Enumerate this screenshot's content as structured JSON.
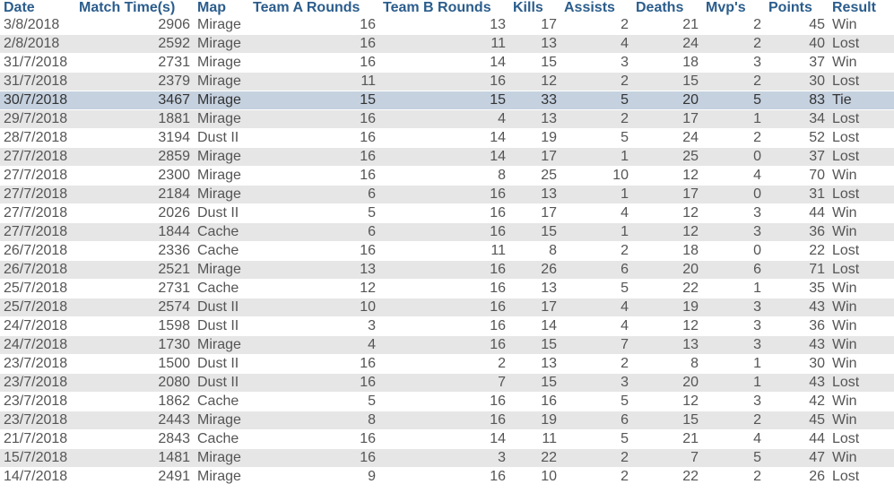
{
  "columns": {
    "date": "Date",
    "match_time": "Match Time(s)",
    "map": "Map",
    "team_a_rounds": "Team A Rounds",
    "team_b_rounds": "Team B Rounds",
    "kills": "Kills",
    "assists": "Assists",
    "deaths": "Deaths",
    "mvps": "Mvp's",
    "points": "Points",
    "result": "Result"
  },
  "selected_row": 4,
  "colors": {
    "header_text": "#2b5d8c",
    "stripe": "#e6e6e6",
    "selected_row": "#c5d1df"
  },
  "rows": [
    {
      "date": "3/8/2018",
      "match_time": "2906",
      "map": "Mirage",
      "team_a_rounds": "16",
      "team_b_rounds": "13",
      "kills": "17",
      "assists": "2",
      "deaths": "21",
      "mvps": "2",
      "points": "45",
      "result": "Win"
    },
    {
      "date": "2/8/2018",
      "match_time": "2592",
      "map": "Mirage",
      "team_a_rounds": "16",
      "team_b_rounds": "11",
      "kills": "13",
      "assists": "4",
      "deaths": "24",
      "mvps": "2",
      "points": "40",
      "result": "Lost"
    },
    {
      "date": "31/7/2018",
      "match_time": "2731",
      "map": "Mirage",
      "team_a_rounds": "16",
      "team_b_rounds": "14",
      "kills": "15",
      "assists": "3",
      "deaths": "18",
      "mvps": "3",
      "points": "37",
      "result": "Win"
    },
    {
      "date": "31/7/2018",
      "match_time": "2379",
      "map": "Mirage",
      "team_a_rounds": "11",
      "team_b_rounds": "16",
      "kills": "12",
      "assists": "2",
      "deaths": "15",
      "mvps": "2",
      "points": "30",
      "result": "Lost"
    },
    {
      "date": "30/7/2018",
      "match_time": "3467",
      "map": "Mirage",
      "team_a_rounds": "15",
      "team_b_rounds": "15",
      "kills": "33",
      "assists": "5",
      "deaths": "20",
      "mvps": "5",
      "points": "83",
      "result": "Tie"
    },
    {
      "date": "29/7/2018",
      "match_time": "1881",
      "map": "Mirage",
      "team_a_rounds": "16",
      "team_b_rounds": "4",
      "kills": "13",
      "assists": "2",
      "deaths": "17",
      "mvps": "1",
      "points": "34",
      "result": "Lost"
    },
    {
      "date": "28/7/2018",
      "match_time": "3194",
      "map": "Dust II",
      "team_a_rounds": "16",
      "team_b_rounds": "14",
      "kills": "19",
      "assists": "5",
      "deaths": "24",
      "mvps": "2",
      "points": "52",
      "result": "Lost"
    },
    {
      "date": "27/7/2018",
      "match_time": "2859",
      "map": "Mirage",
      "team_a_rounds": "16",
      "team_b_rounds": "14",
      "kills": "17",
      "assists": "1",
      "deaths": "25",
      "mvps": "0",
      "points": "37",
      "result": "Lost"
    },
    {
      "date": "27/7/2018",
      "match_time": "2300",
      "map": "Mirage",
      "team_a_rounds": "16",
      "team_b_rounds": "8",
      "kills": "25",
      "assists": "10",
      "deaths": "12",
      "mvps": "4",
      "points": "70",
      "result": "Win"
    },
    {
      "date": "27/7/2018",
      "match_time": "2184",
      "map": "Mirage",
      "team_a_rounds": "6",
      "team_b_rounds": "16",
      "kills": "13",
      "assists": "1",
      "deaths": "17",
      "mvps": "0",
      "points": "31",
      "result": "Lost"
    },
    {
      "date": "27/7/2018",
      "match_time": "2026",
      "map": "Dust II",
      "team_a_rounds": "5",
      "team_b_rounds": "16",
      "kills": "17",
      "assists": "4",
      "deaths": "12",
      "mvps": "3",
      "points": "44",
      "result": "Win"
    },
    {
      "date": "27/7/2018",
      "match_time": "1844",
      "map": "Cache",
      "team_a_rounds": "6",
      "team_b_rounds": "16",
      "kills": "15",
      "assists": "1",
      "deaths": "12",
      "mvps": "3",
      "points": "36",
      "result": "Win"
    },
    {
      "date": "26/7/2018",
      "match_time": "2336",
      "map": "Cache",
      "team_a_rounds": "16",
      "team_b_rounds": "11",
      "kills": "8",
      "assists": "2",
      "deaths": "18",
      "mvps": "0",
      "points": "22",
      "result": "Lost"
    },
    {
      "date": "26/7/2018",
      "match_time": "2521",
      "map": "Mirage",
      "team_a_rounds": "13",
      "team_b_rounds": "16",
      "kills": "26",
      "assists": "6",
      "deaths": "20",
      "mvps": "6",
      "points": "71",
      "result": "Lost"
    },
    {
      "date": "25/7/2018",
      "match_time": "2731",
      "map": "Cache",
      "team_a_rounds": "12",
      "team_b_rounds": "16",
      "kills": "13",
      "assists": "5",
      "deaths": "22",
      "mvps": "1",
      "points": "35",
      "result": "Win"
    },
    {
      "date": "25/7/2018",
      "match_time": "2574",
      "map": "Dust II",
      "team_a_rounds": "10",
      "team_b_rounds": "16",
      "kills": "17",
      "assists": "4",
      "deaths": "19",
      "mvps": "3",
      "points": "43",
      "result": "Win"
    },
    {
      "date": "24/7/2018",
      "match_time": "1598",
      "map": "Dust II",
      "team_a_rounds": "3",
      "team_b_rounds": "16",
      "kills": "14",
      "assists": "4",
      "deaths": "12",
      "mvps": "3",
      "points": "36",
      "result": "Win"
    },
    {
      "date": "24/7/2018",
      "match_time": "1730",
      "map": "Mirage",
      "team_a_rounds": "4",
      "team_b_rounds": "16",
      "kills": "15",
      "assists": "7",
      "deaths": "13",
      "mvps": "3",
      "points": "43",
      "result": "Win"
    },
    {
      "date": "23/7/2018",
      "match_time": "1500",
      "map": "Dust II",
      "team_a_rounds": "16",
      "team_b_rounds": "2",
      "kills": "13",
      "assists": "2",
      "deaths": "8",
      "mvps": "1",
      "points": "30",
      "result": "Win"
    },
    {
      "date": "23/7/2018",
      "match_time": "2080",
      "map": "Dust II",
      "team_a_rounds": "16",
      "team_b_rounds": "7",
      "kills": "15",
      "assists": "3",
      "deaths": "20",
      "mvps": "1",
      "points": "43",
      "result": "Lost"
    },
    {
      "date": "23/7/2018",
      "match_time": "1862",
      "map": "Cache",
      "team_a_rounds": "5",
      "team_b_rounds": "16",
      "kills": "16",
      "assists": "5",
      "deaths": "12",
      "mvps": "3",
      "points": "42",
      "result": "Win"
    },
    {
      "date": "23/7/2018",
      "match_time": "2443",
      "map": "Mirage",
      "team_a_rounds": "8",
      "team_b_rounds": "16",
      "kills": "19",
      "assists": "6",
      "deaths": "15",
      "mvps": "2",
      "points": "45",
      "result": "Win"
    },
    {
      "date": "21/7/2018",
      "match_time": "2843",
      "map": "Cache",
      "team_a_rounds": "16",
      "team_b_rounds": "14",
      "kills": "11",
      "assists": "5",
      "deaths": "21",
      "mvps": "4",
      "points": "44",
      "result": "Lost"
    },
    {
      "date": "15/7/2018",
      "match_time": "1481",
      "map": "Mirage",
      "team_a_rounds": "16",
      "team_b_rounds": "3",
      "kills": "22",
      "assists": "2",
      "deaths": "7",
      "mvps": "5",
      "points": "47",
      "result": "Win"
    },
    {
      "date": "14/7/2018",
      "match_time": "2491",
      "map": "Mirage",
      "team_a_rounds": "9",
      "team_b_rounds": "16",
      "kills": "10",
      "assists": "2",
      "deaths": "22",
      "mvps": "2",
      "points": "26",
      "result": "Lost"
    }
  ]
}
